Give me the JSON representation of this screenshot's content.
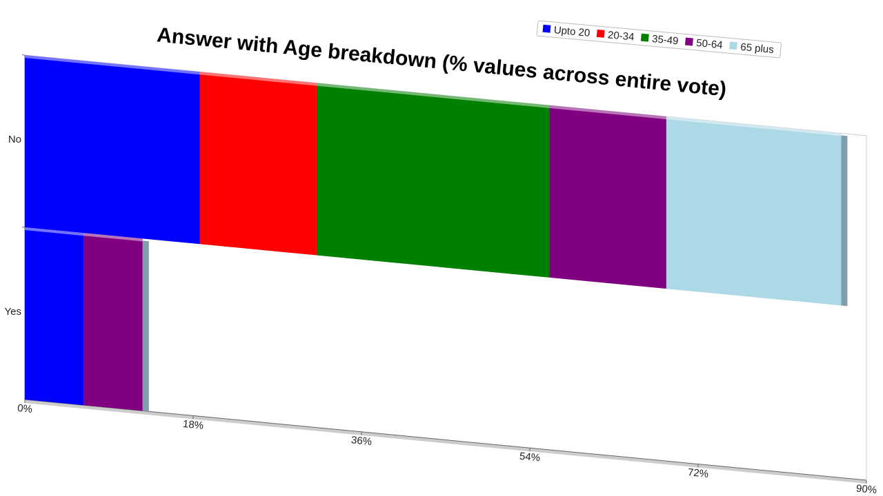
{
  "chart_data": {
    "type": "stacked-bar-horizontal",
    "title": "Answer with Age breakdown (% values across entire vote)",
    "categories": [
      "No",
      "Yes"
    ],
    "series": [
      {
        "name": "Upto 20",
        "color": "#0000ff",
        "values": [
          18.7,
          6.3
        ]
      },
      {
        "name": "20-34",
        "color": "#ff0000",
        "values": [
          12.5,
          0
        ]
      },
      {
        "name": "35-49",
        "color": "#008000",
        "values": [
          24.9,
          0
        ]
      },
      {
        "name": "50-64",
        "color": "#800080",
        "values": [
          12.5,
          6.3
        ]
      },
      {
        "name": "65 plus",
        "color": "#add8e6",
        "values": [
          18.7,
          0
        ]
      }
    ],
    "xlim": [
      0,
      90
    ],
    "xticks": [
      {
        "value": 0,
        "label": "0%"
      },
      {
        "value": 18,
        "label": "18%"
      },
      {
        "value": 36,
        "label": "36%"
      },
      {
        "value": 54,
        "label": "54%"
      },
      {
        "value": 72,
        "label": "72%"
      },
      {
        "value": 90,
        "label": "90%"
      }
    ],
    "legend": "top-right"
  }
}
